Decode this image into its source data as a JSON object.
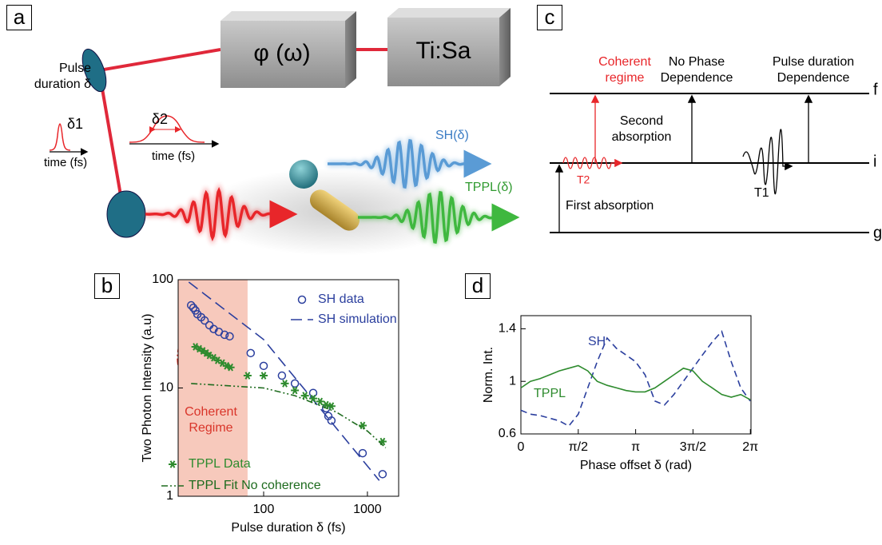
{
  "panels": {
    "a": {
      "label": "a",
      "phase_box": "φ (ω)",
      "laser_box": "Ti:Sa",
      "mirror_label": "Pulse duration δ",
      "pulse1_width": "δ1",
      "pulse1_axis": "time  (fs)",
      "pulse2_width": "δ2",
      "pulse2_axis": "time (fs)",
      "sh_output": "SH(δ)",
      "tppl_output": "TPPL(δ)"
    },
    "b": {
      "label": "b"
    },
    "c": {
      "label": "c",
      "coherent_regime": "Coherent regime",
      "no_phase": "No Phase Dependence",
      "pulse_duration": "Pulse duration Dependence",
      "level_f": "f",
      "level_i": "i",
      "level_g": "g",
      "second_absorption": "Second absorption",
      "t2": "T2",
      "t1": "T1",
      "first_absorption": "First absorption"
    },
    "d": {
      "label": "d"
    }
  },
  "chart_data": [
    {
      "type": "scatter",
      "xlabel": "Pulse duration  δ (fs)",
      "ylabel": "Two Photon Intensity (a.u)",
      "xscale": "log",
      "yscale": "log",
      "xlim": [
        15,
        2000
      ],
      "ylim": [
        1,
        100
      ],
      "xticks": [
        100,
        1000
      ],
      "yticks": [
        1,
        10,
        100
      ],
      "legend": true,
      "shaded_region": {
        "x": [
          15,
          70
        ],
        "color": "#f7c9bc"
      },
      "annotation": "Coherent Regime",
      "series": [
        {
          "name": "SH data",
          "color": "#2b3f9e",
          "mode": "markers",
          "marker": "circle",
          "x": [
            20,
            21,
            22,
            23,
            25,
            27,
            30,
            33,
            37,
            42,
            47,
            75,
            100,
            150,
            200,
            300,
            400,
            420,
            450,
            900,
            1400
          ],
          "values": [
            58,
            55,
            52,
            48,
            45,
            42,
            38,
            35,
            33,
            31,
            30,
            21,
            16,
            13,
            11,
            9,
            6.5,
            5.5,
            5,
            2.5,
            1.6
          ]
        },
        {
          "name": "SH simulation",
          "color": "#2b3f9e",
          "mode": "line",
          "dash": "14 7",
          "x": [
            19,
            100,
            1300
          ],
          "values": [
            95,
            28,
            1.4
          ]
        },
        {
          "name": "TPPL Data",
          "color": "#2e8b2e",
          "mode": "markers",
          "marker": "star",
          "x": [
            22,
            24,
            26,
            28,
            30,
            33,
            36,
            40,
            44,
            48,
            70,
            100,
            160,
            200,
            250,
            300,
            350,
            400,
            450,
            900,
            1400
          ],
          "values": [
            24,
            23,
            22,
            21,
            20,
            19,
            18,
            17,
            16,
            15.5,
            13,
            13,
            11,
            9.5,
            8.5,
            8,
            7.5,
            7,
            6.8,
            4.5,
            3.2
          ]
        },
        {
          "name": "TPPL Fit No coherence",
          "color": "#1e6b1e",
          "mode": "line",
          "dash": "8 3 2 3 2 3",
          "x": [
            20,
            100,
            200,
            500,
            1000,
            1500
          ],
          "values": [
            11,
            10,
            8.5,
            6,
            4,
            2.8
          ]
        }
      ]
    },
    {
      "type": "line",
      "xlabel": "Phase offset δ (rad)",
      "ylabel": "Norm. Int.",
      "xlim": [
        0,
        6.3
      ],
      "ylim": [
        0.6,
        1.5
      ],
      "xticks": [
        0,
        {
          "value": 1.5708,
          "label": "π/2"
        },
        {
          "value": 3.1416,
          "label": "π"
        },
        {
          "value": 4.7124,
          "label": "3π/2"
        },
        {
          "value": 6.2832,
          "label": "2π"
        }
      ],
      "yticks": [
        0.6,
        1,
        1.4
      ],
      "legend": false,
      "series": [
        {
          "name": "SH",
          "color": "#2b3f9e",
          "mode": "line",
          "dash": "8 5",
          "x": [
            0,
            0.26,
            0.52,
            0.79,
            1.05,
            1.31,
            1.57,
            1.83,
            2.09,
            2.36,
            2.62,
            2.88,
            3.14,
            3.4,
            3.67,
            3.93,
            4.19,
            4.45,
            4.71,
            4.97,
            5.24,
            5.5,
            5.76,
            6.02,
            6.28
          ],
          "values": [
            0.78,
            0.75,
            0.74,
            0.72,
            0.7,
            0.66,
            0.75,
            0.95,
            1.15,
            1.33,
            1.25,
            1.2,
            1.15,
            1.05,
            0.85,
            0.82,
            0.9,
            1.0,
            1.1,
            1.2,
            1.3,
            1.38,
            1.15,
            0.95,
            0.85
          ]
        },
        {
          "name": "TPPL",
          "color": "#2e8b2e",
          "mode": "line",
          "x": [
            0,
            0.26,
            0.52,
            0.79,
            1.05,
            1.31,
            1.57,
            1.83,
            2.09,
            2.36,
            2.62,
            2.88,
            3.14,
            3.4,
            3.67,
            3.93,
            4.19,
            4.45,
            4.71,
            4.97,
            5.24,
            5.5,
            5.76,
            6.02,
            6.28
          ],
          "values": [
            0.95,
            1.0,
            1.02,
            1.05,
            1.08,
            1.1,
            1.12,
            1.08,
            1.0,
            0.97,
            0.95,
            0.93,
            0.92,
            0.92,
            0.95,
            1.0,
            1.05,
            1.1,
            1.08,
            1.0,
            0.95,
            0.9,
            0.88,
            0.9,
            0.86
          ]
        }
      ]
    }
  ]
}
